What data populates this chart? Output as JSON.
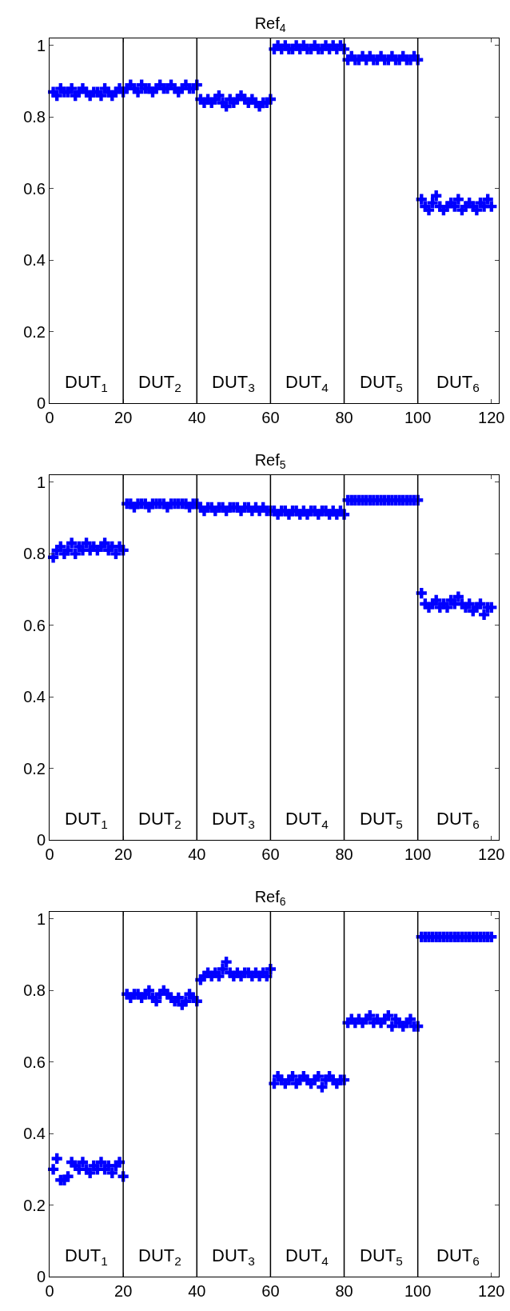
{
  "chart_data": [
    {
      "type": "scatter",
      "title": "Ref$_{4}$",
      "x": [
        1,
        2,
        3,
        4,
        5,
        6,
        7,
        8,
        9,
        10,
        11,
        12,
        13,
        14,
        15,
        16,
        17,
        18,
        19,
        20,
        21,
        22,
        23,
        24,
        25,
        26,
        27,
        28,
        29,
        30,
        31,
        32,
        33,
        34,
        35,
        36,
        37,
        38,
        39,
        40,
        41,
        42,
        43,
        44,
        45,
        46,
        47,
        48,
        49,
        50,
        51,
        52,
        53,
        54,
        55,
        56,
        57,
        58,
        59,
        60,
        61,
        62,
        63,
        64,
        65,
        66,
        67,
        68,
        69,
        70,
        71,
        72,
        73,
        74,
        75,
        76,
        77,
        78,
        79,
        80,
        81,
        82,
        83,
        84,
        85,
        86,
        87,
        88,
        89,
        90,
        91,
        92,
        93,
        94,
        95,
        96,
        97,
        98,
        99,
        100,
        101,
        102,
        103,
        104,
        105,
        106,
        107,
        108,
        109,
        110,
        111,
        112,
        113,
        114,
        115,
        116,
        117,
        118,
        119,
        120
      ],
      "series": [
        {
          "color": "#0000ff",
          "values": [
            0.87,
            0.86,
            0.88,
            0.87,
            0.87,
            0.88,
            0.86,
            0.87,
            0.88,
            0.87,
            0.86,
            0.87,
            0.87,
            0.86,
            0.88,
            0.87,
            0.86,
            0.87,
            0.88,
            0.87,
            0.88,
            0.89,
            0.88,
            0.87,
            0.89,
            0.88,
            0.88,
            0.87,
            0.88,
            0.89,
            0.88,
            0.88,
            0.89,
            0.88,
            0.87,
            0.88,
            0.89,
            0.88,
            0.88,
            0.89,
            0.85,
            0.84,
            0.85,
            0.84,
            0.85,
            0.86,
            0.84,
            0.83,
            0.85,
            0.84,
            0.85,
            0.86,
            0.85,
            0.84,
            0.85,
            0.84,
            0.83,
            0.84,
            0.84,
            0.85,
            0.99,
            1.0,
            0.99,
            1.0,
            0.99,
            0.99,
            1.0,
            0.99,
            1.0,
            0.99,
            0.99,
            1.0,
            0.99,
            0.99,
            1.0,
            0.99,
            1.0,
            0.99,
            1.0,
            0.99,
            0.96,
            0.97,
            0.96,
            0.96,
            0.97,
            0.96,
            0.97,
            0.96,
            0.96,
            0.97,
            0.96,
            0.96,
            0.97,
            0.96,
            0.96,
            0.97,
            0.96,
            0.96,
            0.97,
            0.96,
            0.57,
            0.55,
            0.54,
            0.56,
            0.58,
            0.55,
            0.54,
            0.55,
            0.56,
            0.55,
            0.57,
            0.54,
            0.55,
            0.56,
            0.55,
            0.54,
            0.56,
            0.55,
            0.57,
            0.55
          ]
        }
      ],
      "marker": "cross",
      "xlim": [
        0,
        122
      ],
      "xticks": [
        0,
        20,
        40,
        60,
        80,
        100,
        120
      ],
      "ylim": [
        0,
        1.02
      ],
      "yticks": [
        0,
        0.2,
        0.4,
        0.6,
        0.8,
        1
      ],
      "ref_lines": [
        {
          "axis": "x",
          "value": 20,
          "color": "#000000"
        },
        {
          "axis": "x",
          "value": 40,
          "color": "#000000"
        },
        {
          "axis": "x",
          "value": 60,
          "color": "#000000"
        },
        {
          "axis": "x",
          "value": 80,
          "color": "#000000"
        },
        {
          "axis": "x",
          "value": 100,
          "color": "#000000"
        }
      ],
      "annotations": [
        "DUT$_{1}$",
        "DUT$_{2}$",
        "DUT$_{3}$",
        "DUT$_{4}$",
        "DUT$_{5}$",
        "DUT$_{6}$"
      ]
    },
    {
      "type": "scatter",
      "title": "Ref$_{5}$",
      "x": [
        1,
        2,
        3,
        4,
        5,
        6,
        7,
        8,
        9,
        10,
        11,
        12,
        13,
        14,
        15,
        16,
        17,
        18,
        19,
        20,
        21,
        22,
        23,
        24,
        25,
        26,
        27,
        28,
        29,
        30,
        31,
        32,
        33,
        34,
        35,
        36,
        37,
        38,
        39,
        40,
        41,
        42,
        43,
        44,
        45,
        46,
        47,
        48,
        49,
        50,
        51,
        52,
        53,
        54,
        55,
        56,
        57,
        58,
        59,
        60,
        61,
        62,
        63,
        64,
        65,
        66,
        67,
        68,
        69,
        70,
        71,
        72,
        73,
        74,
        75,
        76,
        77,
        78,
        79,
        80,
        81,
        82,
        83,
        84,
        85,
        86,
        87,
        88,
        89,
        90,
        91,
        92,
        93,
        94,
        95,
        96,
        97,
        98,
        99,
        100,
        101,
        102,
        103,
        104,
        105,
        106,
        107,
        108,
        109,
        110,
        111,
        112,
        113,
        114,
        115,
        116,
        117,
        118,
        119,
        120
      ],
      "series": [
        {
          "color": "#0000ff",
          "values": [
            0.79,
            0.81,
            0.82,
            0.8,
            0.81,
            0.83,
            0.8,
            0.82,
            0.81,
            0.83,
            0.81,
            0.82,
            0.81,
            0.82,
            0.83,
            0.81,
            0.82,
            0.8,
            0.82,
            0.81,
            0.94,
            0.94,
            0.93,
            0.94,
            0.94,
            0.94,
            0.93,
            0.94,
            0.94,
            0.94,
            0.94,
            0.93,
            0.94,
            0.94,
            0.94,
            0.94,
            0.94,
            0.93,
            0.94,
            0.94,
            0.93,
            0.92,
            0.93,
            0.93,
            0.92,
            0.93,
            0.93,
            0.92,
            0.93,
            0.93,
            0.93,
            0.92,
            0.93,
            0.93,
            0.92,
            0.93,
            0.92,
            0.93,
            0.92,
            0.92,
            0.92,
            0.91,
            0.92,
            0.92,
            0.91,
            0.92,
            0.92,
            0.91,
            0.92,
            0.91,
            0.92,
            0.92,
            0.91,
            0.92,
            0.92,
            0.91,
            0.92,
            0.91,
            0.92,
            0.91,
            0.95,
            0.95,
            0.95,
            0.95,
            0.95,
            0.95,
            0.95,
            0.95,
            0.95,
            0.95,
            0.95,
            0.95,
            0.95,
            0.95,
            0.95,
            0.95,
            0.95,
            0.95,
            0.95,
            0.95,
            0.69,
            0.66,
            0.65,
            0.66,
            0.67,
            0.65,
            0.66,
            0.65,
            0.67,
            0.66,
            0.68,
            0.66,
            0.65,
            0.66,
            0.64,
            0.65,
            0.66,
            0.63,
            0.65,
            0.65
          ]
        }
      ],
      "marker": "cross",
      "xlim": [
        0,
        122
      ],
      "xticks": [
        0,
        20,
        40,
        60,
        80,
        100,
        120
      ],
      "ylim": [
        0,
        1.02
      ],
      "yticks": [
        0,
        0.2,
        0.4,
        0.6,
        0.8,
        1
      ],
      "ref_lines": [
        {
          "axis": "x",
          "value": 20,
          "color": "#000000"
        },
        {
          "axis": "x",
          "value": 40,
          "color": "#000000"
        },
        {
          "axis": "x",
          "value": 60,
          "color": "#000000"
        },
        {
          "axis": "x",
          "value": 80,
          "color": "#000000"
        },
        {
          "axis": "x",
          "value": 100,
          "color": "#000000"
        }
      ],
      "annotations": [
        "DUT$_{1}$",
        "DUT$_{2}$",
        "DUT$_{3}$",
        "DUT$_{4}$",
        "DUT$_{5}$",
        "DUT$_{6}$"
      ]
    },
    {
      "type": "scatter",
      "title": "Ref$_{6}$",
      "x": [
        1,
        2,
        3,
        4,
        5,
        6,
        7,
        8,
        9,
        10,
        11,
        12,
        13,
        14,
        15,
        16,
        17,
        18,
        19,
        20,
        21,
        22,
        23,
        24,
        25,
        26,
        27,
        28,
        29,
        30,
        31,
        32,
        33,
        34,
        35,
        36,
        37,
        38,
        39,
        40,
        41,
        42,
        43,
        44,
        45,
        46,
        47,
        48,
        49,
        50,
        51,
        52,
        53,
        54,
        55,
        56,
        57,
        58,
        59,
        60,
        61,
        62,
        63,
        64,
        65,
        66,
        67,
        68,
        69,
        70,
        71,
        72,
        73,
        74,
        75,
        76,
        77,
        78,
        79,
        80,
        81,
        82,
        83,
        84,
        85,
        86,
        87,
        88,
        89,
        90,
        91,
        92,
        93,
        94,
        95,
        96,
        97,
        98,
        99,
        100,
        101,
        102,
        103,
        104,
        105,
        106,
        107,
        108,
        109,
        110,
        111,
        112,
        113,
        114,
        115,
        116,
        117,
        118,
        119,
        120
      ],
      "series": [
        {
          "color": "#0000ff",
          "values": [
            0.3,
            0.33,
            0.27,
            0.27,
            0.28,
            0.32,
            0.31,
            0.3,
            0.32,
            0.3,
            0.29,
            0.31,
            0.3,
            0.32,
            0.3,
            0.31,
            0.29,
            0.31,
            0.32,
            0.28,
            0.79,
            0.78,
            0.79,
            0.79,
            0.78,
            0.79,
            0.8,
            0.78,
            0.77,
            0.79,
            0.8,
            0.79,
            0.78,
            0.77,
            0.78,
            0.76,
            0.77,
            0.79,
            0.78,
            0.77,
            0.83,
            0.84,
            0.85,
            0.84,
            0.85,
            0.84,
            0.86,
            0.88,
            0.85,
            0.84,
            0.85,
            0.84,
            0.85,
            0.85,
            0.84,
            0.85,
            0.84,
            0.85,
            0.84,
            0.86,
            0.54,
            0.56,
            0.55,
            0.54,
            0.55,
            0.56,
            0.54,
            0.55,
            0.56,
            0.55,
            0.54,
            0.55,
            0.56,
            0.53,
            0.55,
            0.56,
            0.55,
            0.54,
            0.55,
            0.55,
            0.71,
            0.72,
            0.71,
            0.72,
            0.71,
            0.72,
            0.73,
            0.71,
            0.72,
            0.71,
            0.72,
            0.73,
            0.7,
            0.72,
            0.71,
            0.7,
            0.71,
            0.72,
            0.7,
            0.7,
            0.95,
            0.95,
            0.95,
            0.95,
            0.95,
            0.95,
            0.95,
            0.95,
            0.95,
            0.95,
            0.95,
            0.95,
            0.95,
            0.95,
            0.95,
            0.95,
            0.95,
            0.95,
            0.95,
            0.95
          ]
        }
      ],
      "marker": "cross",
      "xlim": [
        0,
        122
      ],
      "xticks": [
        0,
        20,
        40,
        60,
        80,
        100,
        120
      ],
      "ylim": [
        0,
        1.02
      ],
      "yticks": [
        0,
        0.2,
        0.4,
        0.6,
        0.8,
        1
      ],
      "ref_lines": [
        {
          "axis": "x",
          "value": 20,
          "color": "#000000"
        },
        {
          "axis": "x",
          "value": 40,
          "color": "#000000"
        },
        {
          "axis": "x",
          "value": 60,
          "color": "#000000"
        },
        {
          "axis": "x",
          "value": 80,
          "color": "#000000"
        },
        {
          "axis": "x",
          "value": 100,
          "color": "#000000"
        }
      ],
      "annotations": [
        "DUT$_{1}$",
        "DUT$_{2}$",
        "DUT$_{3}$",
        "DUT$_{4}$",
        "DUT$_{5}$",
        "DUT$_{6}$"
      ]
    }
  ]
}
